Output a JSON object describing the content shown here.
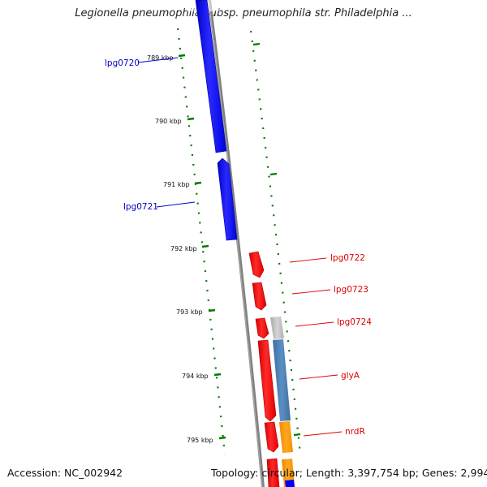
{
  "title": "Legionella pneumophila subsp. pneumophila str. Philadelphia ...",
  "accession": "Accession: NC_002942",
  "topology": "Topology: circular; Length: 3,397,754 bp; Genes: 2,994",
  "ticks": [
    "789 kbp",
    "790 kbp",
    "791 kbp",
    "792 kbp",
    "793 kbp",
    "794 kbp",
    "795 kbp"
  ],
  "genes": [
    {
      "name": "lpg0720",
      "strand": "forward",
      "color": "#0000ff"
    },
    {
      "name": "lpg0721",
      "strand": "forward",
      "color": "#0000ff"
    },
    {
      "name": "lpg0722",
      "strand": "reverse",
      "color": "#ff0000"
    },
    {
      "name": "lpg0723",
      "strand": "reverse",
      "color": "#ff0000"
    },
    {
      "name": "lpg0724",
      "strand": "reverse",
      "color": "#ff0000"
    },
    {
      "name": "glyA",
      "strand": "reverse",
      "color": "#ff0000"
    },
    {
      "name": "nrdR",
      "strand": "reverse",
      "color": "#ff0000"
    }
  ],
  "colors": {
    "forward_cds": "#0000ff",
    "reverse_cds": "#ff0000",
    "backbone": "#808080",
    "tick": "#007a00",
    "cog_blue": "#4a7fb5",
    "cog_orange": "#ff9900",
    "cog_gray": "#bbbbbb"
  }
}
